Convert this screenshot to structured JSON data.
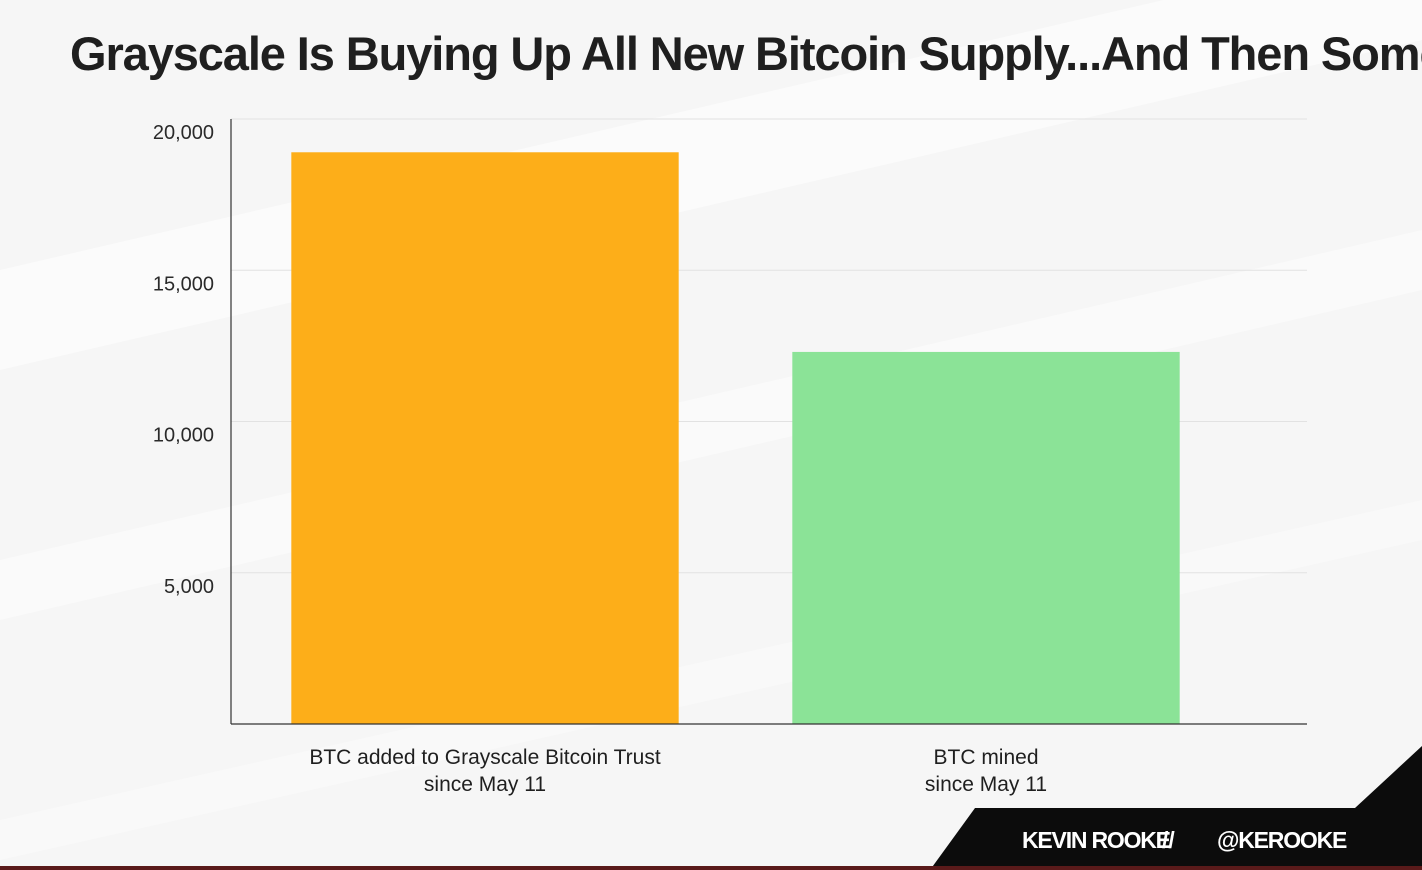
{
  "chart_data": {
    "type": "bar",
    "title": "Grayscale Is Buying Up All New Bitcoin Supply...And Then Some",
    "categories": [
      [
        "BTC added to Grayscale Bitcoin Trust",
        "since May 11"
      ],
      [
        "BTC mined",
        "since May 11"
      ]
    ],
    "values": [
      18900,
      12300
    ],
    "colors": [
      "#fdae19",
      "#8be397"
    ],
    "ylim": [
      0,
      20000
    ],
    "yticks": [
      5000,
      10000,
      15000,
      20000
    ],
    "ytick_labels": [
      "5,000",
      "10,000",
      "15,000",
      "20,000"
    ],
    "grid": true,
    "legend": "none",
    "xlabel": "",
    "ylabel": ""
  },
  "branding": {
    "author": "KEVIN ROOKE",
    "separator": "//",
    "handle": "@KEROOKE"
  }
}
